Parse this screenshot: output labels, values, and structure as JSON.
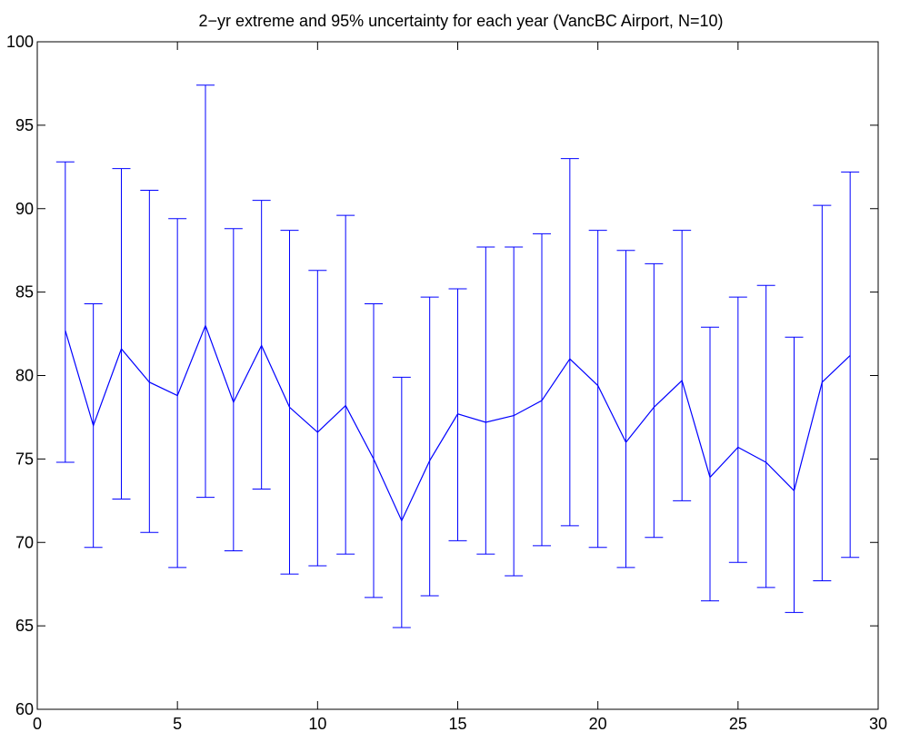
{
  "chart_data": {
    "type": "line",
    "title": "2−yr extreme and 95% uncertainty for each year (VancBC Airport, N=10)",
    "xlabel": "",
    "ylabel": "",
    "xlim": [
      0,
      30
    ],
    "ylim": [
      60,
      100
    ],
    "grid": false,
    "x_ticks": [
      "0",
      "5",
      "10",
      "15",
      "20",
      "25",
      "30"
    ],
    "y_ticks": [
      "60",
      "65",
      "70",
      "75",
      "80",
      "85",
      "90",
      "95",
      "100"
    ],
    "line_color": "#0000ff",
    "series": [
      {
        "x": [
          1,
          2,
          3,
          4,
          5,
          6,
          7,
          8,
          9,
          10,
          11,
          12,
          13,
          14,
          15,
          16,
          17,
          18,
          19,
          20,
          21,
          22,
          23,
          24,
          25,
          26,
          27,
          28,
          29
        ],
        "values": [
          82.7,
          77.0,
          81.6,
          79.6,
          78.8,
          83.0,
          78.4,
          81.8,
          78.1,
          76.6,
          78.2,
          75.0,
          71.3,
          74.9,
          77.7,
          77.2,
          77.6,
          78.5,
          81.0,
          79.4,
          76.0,
          78.1,
          79.7,
          73.9,
          75.7,
          74.8,
          73.1,
          79.6,
          81.2
        ],
        "lower": [
          74.8,
          69.7,
          72.6,
          70.6,
          68.5,
          72.7,
          69.5,
          73.2,
          68.1,
          68.6,
          69.3,
          66.7,
          64.9,
          66.8,
          70.1,
          69.3,
          68.0,
          69.8,
          71.0,
          69.7,
          68.5,
          70.3,
          72.5,
          66.5,
          68.8,
          67.3,
          65.8,
          67.7,
          69.1
        ],
        "upper": [
          92.8,
          84.3,
          92.4,
          91.1,
          89.4,
          97.4,
          88.8,
          90.5,
          88.7,
          86.3,
          89.6,
          84.3,
          79.9,
          84.7,
          85.2,
          87.7,
          87.7,
          88.5,
          93.0,
          88.7,
          87.5,
          86.7,
          88.7,
          82.9,
          84.7,
          85.4,
          82.3,
          90.2,
          92.2
        ]
      }
    ]
  }
}
